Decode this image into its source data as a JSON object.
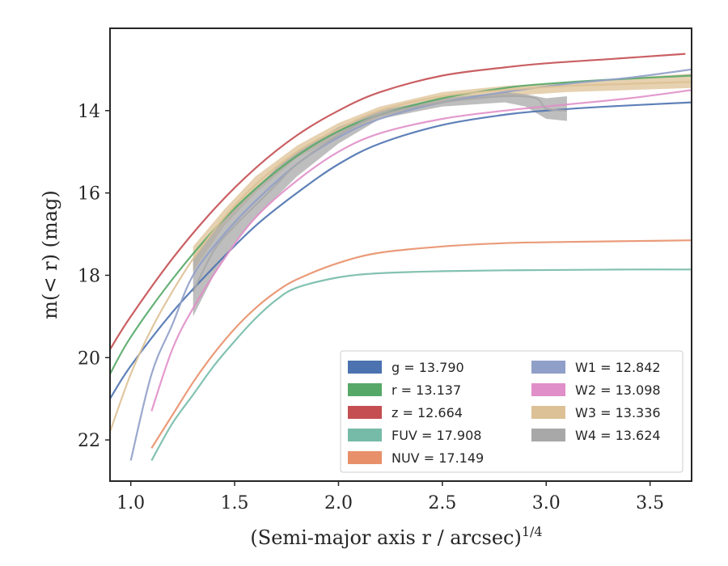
{
  "chart_data": {
    "type": "line",
    "xlabel": "(Semi-major axis r / arcsec)",
    "xlabel_exponent": "1/4",
    "ylabel": "m(< r) (mag)",
    "xlim": [
      0.9,
      3.7
    ],
    "ylim": [
      23.0,
      12.0
    ],
    "y_inverted": true,
    "x_ticks": [
      "1.0",
      "1.5",
      "2.0",
      "2.5",
      "3.0",
      "3.5"
    ],
    "x_tick_values": [
      1.0,
      1.5,
      2.0,
      2.5,
      3.0,
      3.5
    ],
    "y_ticks": [
      "14",
      "16",
      "18",
      "20",
      "22"
    ],
    "y_tick_values": [
      14,
      16,
      18,
      20,
      22
    ],
    "grid": false,
    "legend_position": "lower-right",
    "legend": [
      {
        "label": "g = 13.790",
        "color": "#4c72b0"
      },
      {
        "label": "r = 13.137",
        "color": "#55a868"
      },
      {
        "label": "z = 12.664",
        "color": "#c44e52"
      },
      {
        "label": "FUV = 17.908",
        "color": "#76bba8"
      },
      {
        "label": "NUV = 17.149",
        "color": "#e8906a"
      },
      {
        "label": "W1 = 12.842",
        "color": "#909fc8"
      },
      {
        "label": "W2 = 13.098",
        "color": "#e08fc8"
      },
      {
        "label": "W3 = 13.336",
        "color": "#ddc196"
      },
      {
        "label": "W4 = 13.624",
        "color": "#a8a8a8"
      }
    ],
    "series": [
      {
        "key": "g",
        "color": "#4c72b0",
        "x": [
          0.9,
          1.0,
          1.2,
          1.4,
          1.6,
          1.8,
          2.0,
          2.2,
          2.5,
          2.8,
          3.0,
          3.3,
          3.7
        ],
        "y": [
          21.0,
          20.2,
          18.9,
          17.8,
          16.8,
          16.0,
          15.3,
          14.8,
          14.35,
          14.1,
          14.0,
          13.9,
          13.8
        ]
      },
      {
        "key": "r",
        "color": "#55a868",
        "x": [
          0.9,
          1.0,
          1.2,
          1.4,
          1.6,
          1.8,
          2.0,
          2.2,
          2.5,
          2.8,
          3.0,
          3.3,
          3.7
        ],
        "y": [
          20.4,
          19.5,
          18.1,
          16.9,
          15.9,
          15.1,
          14.5,
          14.1,
          13.7,
          13.45,
          13.35,
          13.25,
          13.15
        ]
      },
      {
        "key": "z",
        "color": "#c44e52",
        "x": [
          0.9,
          1.0,
          1.2,
          1.4,
          1.6,
          1.8,
          2.0,
          2.2,
          2.5,
          2.8,
          3.0,
          3.3,
          3.67
        ],
        "y": [
          19.8,
          19.0,
          17.6,
          16.4,
          15.4,
          14.6,
          14.0,
          13.55,
          13.15,
          12.95,
          12.85,
          12.75,
          12.62
        ]
      },
      {
        "key": "FUV",
        "color": "#76bba8",
        "x": [
          1.1,
          1.2,
          1.3,
          1.4,
          1.5,
          1.6,
          1.7,
          1.8,
          2.0,
          2.2,
          2.5,
          2.8,
          3.1,
          3.4,
          3.7
        ],
        "y": [
          22.5,
          21.6,
          20.9,
          20.2,
          19.6,
          19.05,
          18.6,
          18.3,
          18.05,
          17.95,
          17.9,
          17.88,
          17.87,
          17.86,
          17.86
        ]
      },
      {
        "key": "NUV",
        "color": "#e8906a",
        "x": [
          1.1,
          1.2,
          1.3,
          1.4,
          1.5,
          1.6,
          1.7,
          1.8,
          2.0,
          2.2,
          2.5,
          2.8,
          3.1,
          3.4,
          3.7
        ],
        "y": [
          22.2,
          21.4,
          20.6,
          19.9,
          19.3,
          18.8,
          18.4,
          18.1,
          17.7,
          17.45,
          17.3,
          17.22,
          17.19,
          17.17,
          17.15
        ]
      },
      {
        "key": "W1",
        "color": "#909fc8",
        "x": [
          1.0,
          1.1,
          1.2,
          1.3,
          1.45,
          1.6,
          1.8,
          2.0,
          2.2,
          2.5,
          2.8,
          3.1,
          3.4,
          3.7
        ],
        "y": [
          22.5,
          20.4,
          19.2,
          18.0,
          17.0,
          16.2,
          15.3,
          14.65,
          14.2,
          13.8,
          13.55,
          13.35,
          13.2,
          13.0
        ]
      },
      {
        "key": "W2",
        "color": "#e08fc8",
        "x": [
          1.1,
          1.2,
          1.3,
          1.45,
          1.6,
          1.8,
          2.0,
          2.2,
          2.5,
          2.8,
          3.1,
          3.4,
          3.7
        ],
        "y": [
          21.3,
          19.8,
          18.8,
          17.6,
          16.6,
          15.7,
          15.0,
          14.55,
          14.2,
          14.0,
          13.85,
          13.7,
          13.5
        ]
      },
      {
        "key": "W3",
        "color": "#ddc196",
        "x": [
          0.9,
          1.0,
          1.1,
          1.2,
          1.3,
          1.45,
          1.6,
          1.8,
          2.0,
          2.2,
          2.5,
          2.8,
          3.1,
          3.4,
          3.7
        ],
        "y": [
          21.8,
          20.4,
          19.3,
          18.4,
          17.6,
          16.6,
          15.8,
          15.0,
          14.45,
          14.0,
          13.65,
          13.5,
          13.4,
          13.35,
          13.3
        ]
      },
      {
        "key": "W4",
        "color": "#a8a8a8",
        "x": [
          1.3,
          1.4,
          1.5,
          1.6,
          1.7,
          1.8,
          2.0,
          2.2,
          2.5,
          2.8,
          2.95,
          3.0,
          3.1
        ],
        "y": [
          18.4,
          17.4,
          16.8,
          16.3,
          15.8,
          15.3,
          14.6,
          14.1,
          13.8,
          13.65,
          13.7,
          13.95,
          14.0
        ]
      }
    ],
    "band_W4": {
      "x": [
        1.3,
        1.4,
        1.5,
        1.6,
        1.7,
        1.8,
        2.0,
        2.2,
        2.5,
        2.8,
        2.9,
        3.0,
        3.1
      ],
      "y_low": [
        17.6,
        16.9,
        16.4,
        15.9,
        15.4,
        15.0,
        14.4,
        14.0,
        13.7,
        13.55,
        13.6,
        13.7,
        13.65
      ],
      "y_high": [
        19.0,
        18.0,
        17.2,
        16.6,
        16.1,
        15.6,
        14.8,
        14.2,
        13.9,
        13.8,
        13.9,
        14.2,
        14.25
      ]
    },
    "band_W3": {
      "x": [
        1.3,
        1.45,
        1.6,
        1.8,
        2.0,
        2.2,
        2.5,
        2.8,
        3.1,
        3.4,
        3.7
      ],
      "y_low": [
        17.3,
        16.4,
        15.6,
        14.85,
        14.3,
        13.9,
        13.55,
        13.4,
        13.3,
        13.2,
        13.1
      ],
      "y_high": [
        17.9,
        16.8,
        16.0,
        15.15,
        14.6,
        14.15,
        13.8,
        13.65,
        13.55,
        13.5,
        13.45
      ]
    }
  }
}
